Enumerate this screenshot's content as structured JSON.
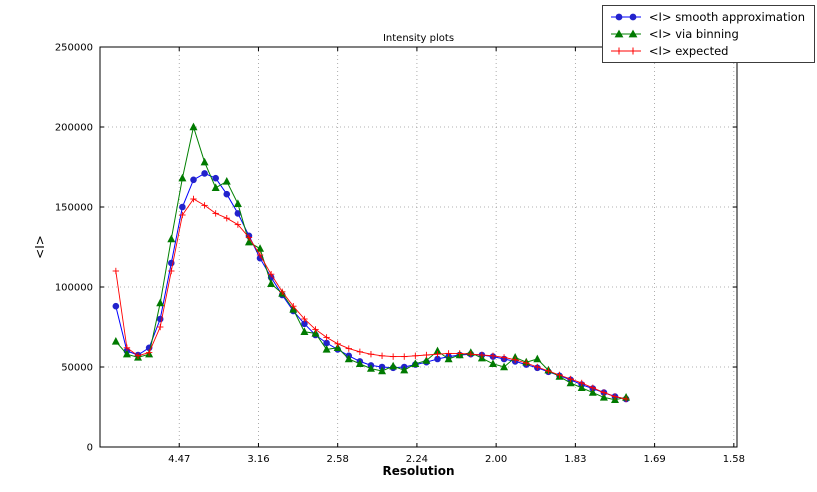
{
  "chart_data": {
    "type": "line",
    "title": "Intensity plots",
    "xlabel": "Resolution",
    "ylabel": "<I>",
    "grid": true,
    "legend_position": "upper right, outside plot top-right corner",
    "x_axis_note": "x axis linear in 1/d^2; tick labels show resolution d-spacing",
    "xlim": [
      0.0,
      0.402
    ],
    "ylim": [
      0,
      250000
    ],
    "x_ticks": [
      {
        "pos": 0.05,
        "label": "4.47"
      },
      {
        "pos": 0.1,
        "label": "3.16"
      },
      {
        "pos": 0.15,
        "label": "2.58"
      },
      {
        "pos": 0.2,
        "label": "2.24"
      },
      {
        "pos": 0.25,
        "label": "2.00"
      },
      {
        "pos": 0.3,
        "label": "1.83"
      },
      {
        "pos": 0.35,
        "label": "1.69"
      },
      {
        "pos": 0.4,
        "label": "1.58"
      }
    ],
    "y_ticks": [
      0,
      50000,
      100000,
      150000,
      200000,
      250000
    ],
    "x": [
      0.01,
      0.017,
      0.024,
      0.031,
      0.038,
      0.045,
      0.052,
      0.059,
      0.066,
      0.073,
      0.08,
      0.087,
      0.094,
      0.101,
      0.108,
      0.115,
      0.122,
      0.129,
      0.136,
      0.143,
      0.15,
      0.157,
      0.164,
      0.171,
      0.178,
      0.185,
      0.192,
      0.199,
      0.206,
      0.213,
      0.22,
      0.227,
      0.234,
      0.241,
      0.248,
      0.255,
      0.262,
      0.269,
      0.276,
      0.283,
      0.29,
      0.297,
      0.304,
      0.311,
      0.318,
      0.325,
      0.332
    ],
    "series": [
      {
        "id": "smooth",
        "name": "<I> smooth approximation",
        "color": "#0000ff",
        "marker_color": "#2222cc",
        "marker": "circle",
        "values": [
          88000,
          60000,
          57500,
          62000,
          80000,
          115000,
          150000,
          167000,
          171000,
          168000,
          158000,
          146000,
          132000,
          118000,
          106000,
          95000,
          85000,
          77000,
          70000,
          65000,
          61000,
          57000,
          53500,
          51000,
          50000,
          49500,
          50000,
          51500,
          53000,
          55000,
          56500,
          57500,
          58000,
          57500,
          56500,
          55000,
          53500,
          51500,
          49500,
          47000,
          44500,
          42000,
          39000,
          36500,
          34000,
          31500,
          30000
        ]
      },
      {
        "id": "binning",
        "name": "<I> via binning",
        "color": "#008000",
        "marker_color": "#007a00",
        "marker": "triangle",
        "values": [
          66000,
          58000,
          56000,
          58000,
          90000,
          130000,
          168000,
          200000,
          178000,
          162000,
          166000,
          152000,
          128000,
          124000,
          102000,
          96000,
          86000,
          72000,
          71000,
          61000,
          62000,
          55000,
          52000,
          49000,
          47500,
          50500,
          48000,
          52000,
          54000,
          60000,
          55000,
          57500,
          59000,
          55500,
          52000,
          50000,
          56000,
          53000,
          55000,
          48000,
          44000,
          40000,
          37000,
          34000,
          31000,
          29500,
          31000
        ]
      },
      {
        "id": "expected",
        "name": "<I> expected",
        "color": "#ff0000",
        "marker_color": "#ff0000",
        "marker": "plus",
        "values": [
          110000,
          62000,
          57000,
          59000,
          75000,
          110000,
          145000,
          155000,
          151000,
          146000,
          143000,
          139000,
          131000,
          120000,
          108000,
          97000,
          88000,
          80000,
          73500,
          68500,
          64500,
          61500,
          59500,
          58000,
          57000,
          56500,
          56500,
          57000,
          57500,
          58000,
          58500,
          58500,
          58000,
          57500,
          57000,
          56000,
          54500,
          52500,
          50000,
          47500,
          45000,
          42500,
          40000,
          37000,
          34000,
          31500,
          30000
        ]
      }
    ]
  }
}
